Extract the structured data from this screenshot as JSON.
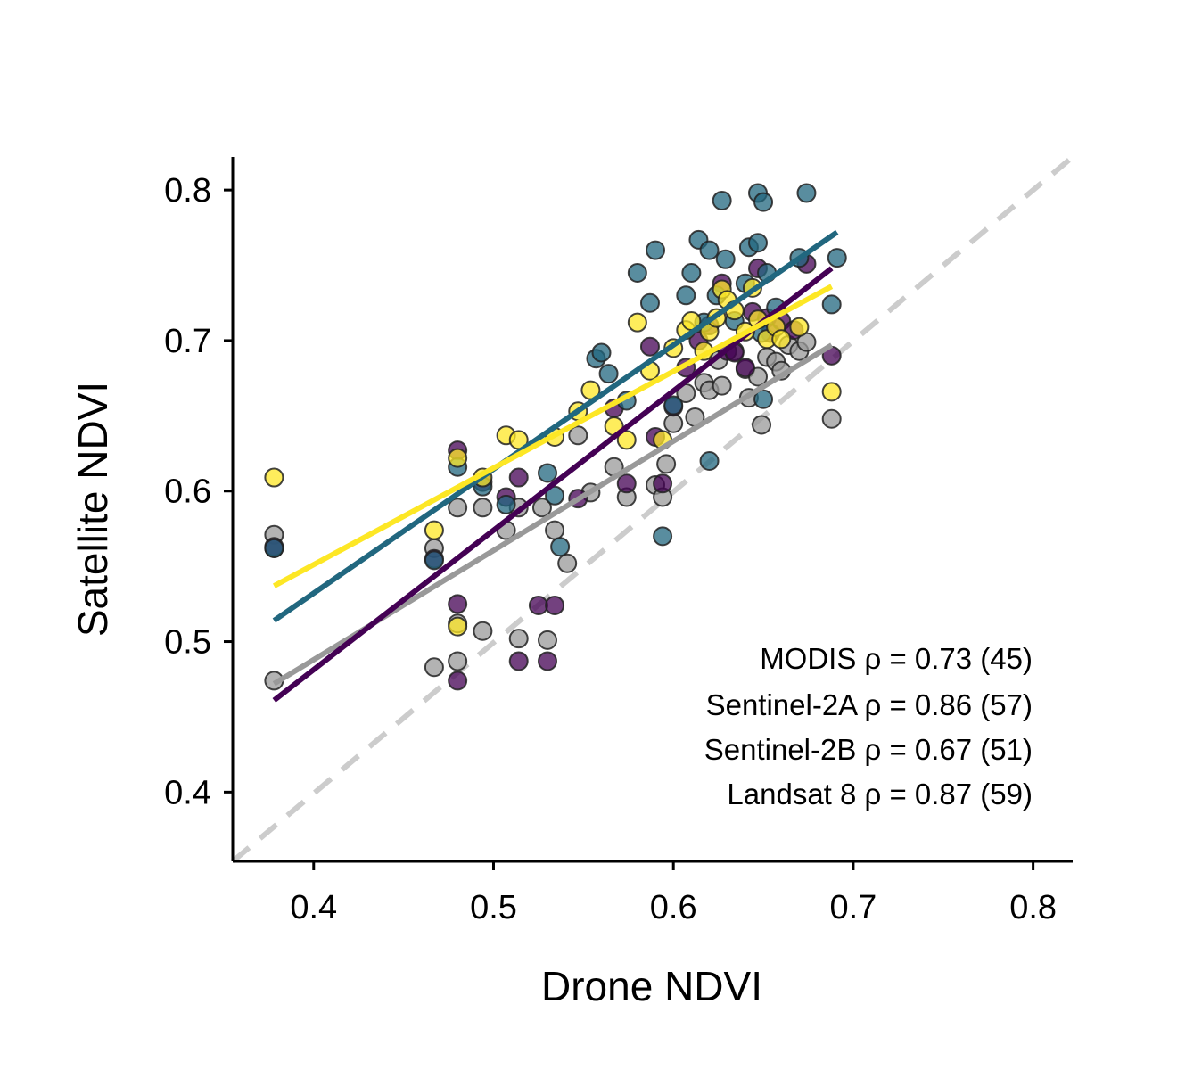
{
  "chart_data": {
    "type": "scatter",
    "xlabel": "Drone NDVI",
    "ylabel": "Satellite NDVI",
    "xlim": [
      0.355,
      0.822
    ],
    "ylim": [
      0.354,
      0.822
    ],
    "xticks": [
      0.4,
      0.5,
      0.6,
      0.7,
      0.8
    ],
    "yticks": [
      0.4,
      0.5,
      0.6,
      0.7,
      0.8
    ],
    "xtick_labels": [
      "0.4",
      "0.5",
      "0.6",
      "0.7",
      "0.8"
    ],
    "ytick_labels": [
      "0.4",
      "0.5",
      "0.6",
      "0.7",
      "0.8"
    ],
    "grid": false,
    "one_to_one_line": {
      "style": "dashed",
      "color": "#cccccc",
      "from": [
        0.355,
        0.354
      ],
      "to": [
        0.822,
        0.822
      ]
    },
    "annotations": [
      "MODIS ρ = 0.73 (45)",
      "Sentinel-2A ρ = 0.86 (57)",
      "Sentinel-2B ρ = 0.67 (51)",
      "Landsat 8 ρ = 0.87 (59)"
    ],
    "series": [
      {
        "color": "#999999",
        "fit": {
          "x": [
            0.378,
            0.688
          ],
          "y": [
            0.472,
            0.697
          ]
        },
        "points": [
          [
            0.378,
            0.474
          ],
          [
            0.378,
            0.571
          ],
          [
            0.378,
            0.562
          ],
          [
            0.467,
            0.483
          ],
          [
            0.467,
            0.562
          ],
          [
            0.48,
            0.487
          ],
          [
            0.48,
            0.589
          ],
          [
            0.48,
            0.512
          ],
          [
            0.494,
            0.507
          ],
          [
            0.494,
            0.589
          ],
          [
            0.507,
            0.574
          ],
          [
            0.514,
            0.502
          ],
          [
            0.514,
            0.589
          ],
          [
            0.527,
            0.589
          ],
          [
            0.53,
            0.501
          ],
          [
            0.534,
            0.574
          ],
          [
            0.541,
            0.552
          ],
          [
            0.547,
            0.637
          ],
          [
            0.554,
            0.599
          ],
          [
            0.567,
            0.616
          ],
          [
            0.574,
            0.596
          ],
          [
            0.59,
            0.604
          ],
          [
            0.594,
            0.596
          ],
          [
            0.596,
            0.618
          ],
          [
            0.6,
            0.645
          ],
          [
            0.607,
            0.665
          ],
          [
            0.612,
            0.649
          ],
          [
            0.617,
            0.672
          ],
          [
            0.62,
            0.667
          ],
          [
            0.625,
            0.687
          ],
          [
            0.627,
            0.67
          ],
          [
            0.634,
            0.693
          ],
          [
            0.64,
            0.681
          ],
          [
            0.642,
            0.662
          ],
          [
            0.647,
            0.676
          ],
          [
            0.649,
            0.644
          ],
          [
            0.652,
            0.689
          ],
          [
            0.657,
            0.686
          ],
          [
            0.66,
            0.68
          ],
          [
            0.664,
            0.697
          ],
          [
            0.67,
            0.693
          ],
          [
            0.674,
            0.699
          ],
          [
            0.688,
            0.648
          ]
        ]
      },
      {
        "color": "#440154",
        "fit": {
          "x": [
            0.378,
            0.688
          ],
          "y": [
            0.461,
            0.748
          ]
        },
        "points": [
          [
            0.378,
            0.563
          ],
          [
            0.467,
            0.555
          ],
          [
            0.48,
            0.525
          ],
          [
            0.48,
            0.474
          ],
          [
            0.48,
            0.627
          ],
          [
            0.494,
            0.606
          ],
          [
            0.507,
            0.596
          ],
          [
            0.514,
            0.487
          ],
          [
            0.514,
            0.609
          ],
          [
            0.525,
            0.524
          ],
          [
            0.53,
            0.487
          ],
          [
            0.534,
            0.524
          ],
          [
            0.547,
            0.595
          ],
          [
            0.567,
            0.655
          ],
          [
            0.574,
            0.605
          ],
          [
            0.587,
            0.696
          ],
          [
            0.594,
            0.605
          ],
          [
            0.59,
            0.636
          ],
          [
            0.6,
            0.656
          ],
          [
            0.607,
            0.682
          ],
          [
            0.614,
            0.7
          ],
          [
            0.62,
            0.71
          ],
          [
            0.627,
            0.738
          ],
          [
            0.63,
            0.693
          ],
          [
            0.634,
            0.692
          ],
          [
            0.64,
            0.682
          ],
          [
            0.644,
            0.719
          ],
          [
            0.647,
            0.748
          ],
          [
            0.652,
            0.715
          ],
          [
            0.654,
            0.705
          ],
          [
            0.66,
            0.713
          ],
          [
            0.667,
            0.707
          ],
          [
            0.674,
            0.751
          ],
          [
            0.688,
            0.69
          ]
        ]
      },
      {
        "color": "#21677f",
        "fit": {
          "x": [
            0.378,
            0.691
          ],
          "y": [
            0.514,
            0.772
          ]
        },
        "points": [
          [
            0.378,
            0.562
          ],
          [
            0.467,
            0.554
          ],
          [
            0.48,
            0.616
          ],
          [
            0.494,
            0.603
          ],
          [
            0.507,
            0.591
          ],
          [
            0.53,
            0.612
          ],
          [
            0.534,
            0.597
          ],
          [
            0.537,
            0.563
          ],
          [
            0.557,
            0.688
          ],
          [
            0.56,
            0.692
          ],
          [
            0.564,
            0.678
          ],
          [
            0.574,
            0.66
          ],
          [
            0.58,
            0.745
          ],
          [
            0.587,
            0.725
          ],
          [
            0.59,
            0.76
          ],
          [
            0.594,
            0.57
          ],
          [
            0.6,
            0.657
          ],
          [
            0.607,
            0.73
          ],
          [
            0.61,
            0.745
          ],
          [
            0.614,
            0.767
          ],
          [
            0.617,
            0.712
          ],
          [
            0.62,
            0.76
          ],
          [
            0.62,
            0.62
          ],
          [
            0.624,
            0.73
          ],
          [
            0.627,
            0.793
          ],
          [
            0.629,
            0.754
          ],
          [
            0.634,
            0.713
          ],
          [
            0.64,
            0.738
          ],
          [
            0.642,
            0.762
          ],
          [
            0.647,
            0.798
          ],
          [
            0.647,
            0.765
          ],
          [
            0.649,
            0.705
          ],
          [
            0.65,
            0.792
          ],
          [
            0.652,
            0.745
          ],
          [
            0.657,
            0.722
          ],
          [
            0.67,
            0.755
          ],
          [
            0.674,
            0.798
          ],
          [
            0.688,
            0.724
          ],
          [
            0.691,
            0.755
          ],
          [
            0.65,
            0.661
          ]
        ]
      },
      {
        "color": "#fde725",
        "fit": {
          "x": [
            0.378,
            0.688
          ],
          "y": [
            0.537,
            0.736
          ]
        },
        "points": [
          [
            0.378,
            0.609
          ],
          [
            0.467,
            0.574
          ],
          [
            0.48,
            0.51
          ],
          [
            0.48,
            0.622
          ],
          [
            0.494,
            0.609
          ],
          [
            0.507,
            0.637
          ],
          [
            0.514,
            0.634
          ],
          [
            0.534,
            0.636
          ],
          [
            0.547,
            0.653
          ],
          [
            0.554,
            0.667
          ],
          [
            0.567,
            0.643
          ],
          [
            0.574,
            0.634
          ],
          [
            0.58,
            0.712
          ],
          [
            0.587,
            0.68
          ],
          [
            0.594,
            0.634
          ],
          [
            0.6,
            0.695
          ],
          [
            0.607,
            0.707
          ],
          [
            0.61,
            0.713
          ],
          [
            0.617,
            0.693
          ],
          [
            0.62,
            0.706
          ],
          [
            0.624,
            0.715
          ],
          [
            0.627,
            0.734
          ],
          [
            0.63,
            0.727
          ],
          [
            0.634,
            0.72
          ],
          [
            0.64,
            0.706
          ],
          [
            0.644,
            0.735
          ],
          [
            0.647,
            0.714
          ],
          [
            0.652,
            0.701
          ],
          [
            0.657,
            0.709
          ],
          [
            0.66,
            0.701
          ],
          [
            0.67,
            0.709
          ],
          [
            0.688,
            0.666
          ]
        ]
      }
    ]
  }
}
